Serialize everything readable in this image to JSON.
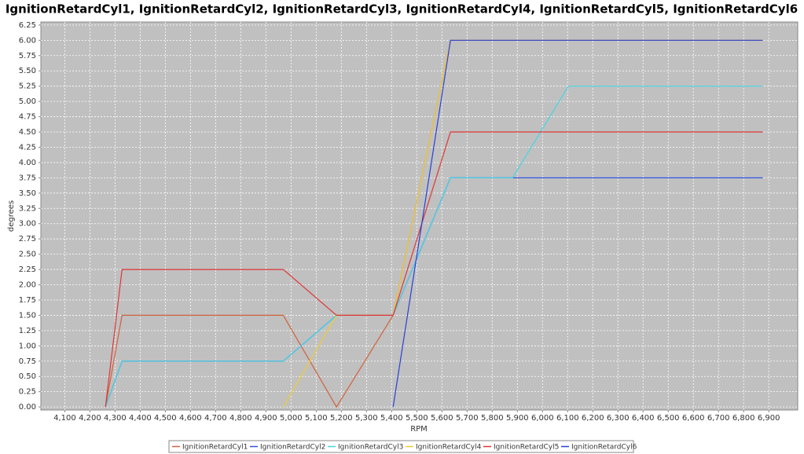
{
  "chart_data": {
    "type": "line",
    "title": "IgnitionRetardCyl1, IgnitionRetardCyl2, IgnitionRetardCyl3, IgnitionRetardCyl4, IgnitionRetardCyl5, IgnitionRetardCyl6",
    "x_label": "RPM",
    "y_label": "degrees",
    "x": [
      4262,
      4328,
      4969,
      5181,
      5406,
      5634,
      5881,
      6103,
      6875
    ],
    "series": [
      {
        "name": "IgnitionRetardCyl1",
        "color": "#d2603a",
        "values": [
          0,
          1.5,
          1.5,
          0,
          1.5,
          6.0,
          6.0,
          6.0,
          6.0
        ]
      },
      {
        "name": "IgnitionRetardCyl2",
        "color": "#3355e0",
        "values": [
          0,
          0.75,
          0.75,
          1.5,
          1.5,
          3.75,
          3.75,
          3.75,
          3.75
        ]
      },
      {
        "name": "IgnitionRetardCyl3",
        "color": "#44d4e6",
        "values": [
          0,
          0.75,
          0.75,
          1.5,
          1.5,
          3.75,
          3.75,
          5.25,
          5.25
        ]
      },
      {
        "name": "IgnitionRetardCyl4",
        "color": "#f0cc30",
        "values": [
          null,
          null,
          0,
          1.5,
          1.5,
          6.0,
          6.0,
          6.0,
          6.0
        ]
      },
      {
        "name": "IgnitionRetardCyl5",
        "color": "#e03535",
        "values": [
          0,
          2.25,
          2.25,
          1.5,
          1.5,
          4.5,
          4.5,
          4.5,
          4.5
        ]
      },
      {
        "name": "IgnitionRetardCyl6",
        "color": "#2a3fd8",
        "values": [
          null,
          null,
          null,
          null,
          0,
          6.0,
          6.0,
          6.0,
          6.0
        ]
      }
    ],
    "xlim": [
      4005,
      7015
    ],
    "ylim": [
      -0.05,
      6.3
    ],
    "grid": true,
    "xticks": [
      {
        "value": 4100,
        "label": "4,100"
      },
      {
        "value": 4200,
        "label": "4,200"
      },
      {
        "value": 4300,
        "label": "4,300"
      },
      {
        "value": 4400,
        "label": "4,400"
      },
      {
        "value": 4500,
        "label": "4,500"
      },
      {
        "value": 4600,
        "label": "4,600"
      },
      {
        "value": 4700,
        "label": "4,700"
      },
      {
        "value": 4800,
        "label": "4,800"
      },
      {
        "value": 4900,
        "label": "4,900"
      },
      {
        "value": 5000,
        "label": "5,000"
      },
      {
        "value": 5100,
        "label": "5,100"
      },
      {
        "value": 5200,
        "label": "5,200"
      },
      {
        "value": 5300,
        "label": "5,300"
      },
      {
        "value": 5400,
        "label": "5,400"
      },
      {
        "value": 5500,
        "label": "5,500"
      },
      {
        "value": 5600,
        "label": "5,600"
      },
      {
        "value": 5700,
        "label": "5,700"
      },
      {
        "value": 5800,
        "label": "5,800"
      },
      {
        "value": 5900,
        "label": "5,900"
      },
      {
        "value": 6000,
        "label": "6,000"
      },
      {
        "value": 6100,
        "label": "6,100"
      },
      {
        "value": 6200,
        "label": "6,200"
      },
      {
        "value": 6300,
        "label": "6,300"
      },
      {
        "value": 6400,
        "label": "6,400"
      },
      {
        "value": 6500,
        "label": "6,500"
      },
      {
        "value": 6600,
        "label": "6,600"
      },
      {
        "value": 6700,
        "label": "6,700"
      },
      {
        "value": 6800,
        "label": "6,800"
      },
      {
        "value": 6900,
        "label": "6,900"
      }
    ],
    "yticks": [
      {
        "value": 0,
        "label": "0.00"
      },
      {
        "value": 0.25,
        "label": "0.25"
      },
      {
        "value": 0.5,
        "label": "0.50"
      },
      {
        "value": 0.75,
        "label": "0.75"
      },
      {
        "value": 1,
        "label": "1.00"
      },
      {
        "value": 1.25,
        "label": "1.25"
      },
      {
        "value": 1.5,
        "label": "1.50"
      },
      {
        "value": 1.75,
        "label": "1.75"
      },
      {
        "value": 2,
        "label": "2.00"
      },
      {
        "value": 2.25,
        "label": "2.25"
      },
      {
        "value": 2.5,
        "label": "2.50"
      },
      {
        "value": 2.75,
        "label": "2.75"
      },
      {
        "value": 3,
        "label": "3.00"
      },
      {
        "value": 3.25,
        "label": "3.25"
      },
      {
        "value": 3.5,
        "label": "3.50"
      },
      {
        "value": 3.75,
        "label": "3.75"
      },
      {
        "value": 4,
        "label": "4.00"
      },
      {
        "value": 4.25,
        "label": "4.25"
      },
      {
        "value": 4.5,
        "label": "4.50"
      },
      {
        "value": 4.75,
        "label": "4.75"
      },
      {
        "value": 5,
        "label": "5.00"
      },
      {
        "value": 5.25,
        "label": "5.25"
      },
      {
        "value": 5.5,
        "label": "5.50"
      },
      {
        "value": 5.75,
        "label": "5.75"
      },
      {
        "value": 6,
        "label": "6.00"
      },
      {
        "value": 6.25,
        "label": "6.25"
      }
    ]
  }
}
